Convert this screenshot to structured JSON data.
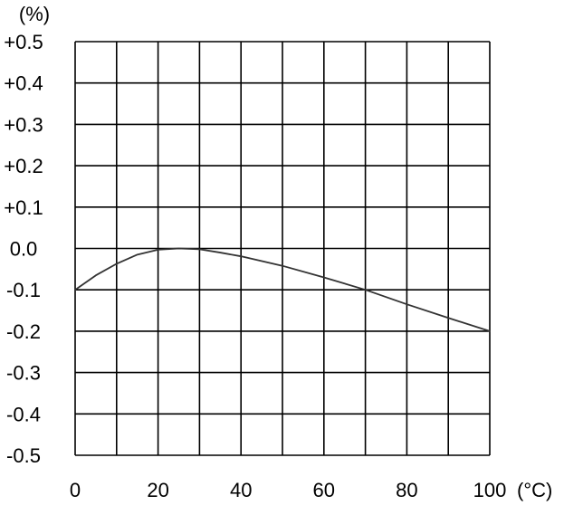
{
  "chart_data": {
    "type": "line",
    "title": "",
    "xlabel": "",
    "ylabel": "",
    "y_unit_label": "(%)",
    "x_unit_label": "(°C)",
    "xlim": [
      0,
      100
    ],
    "ylim": [
      -0.5,
      0.5
    ],
    "grid": true,
    "x_gridlines": [
      0,
      10,
      20,
      30,
      40,
      50,
      60,
      70,
      80,
      90,
      100
    ],
    "y_gridlines": [
      -0.5,
      -0.4,
      -0.3,
      -0.2,
      -0.1,
      0.0,
      0.1,
      0.2,
      0.3,
      0.4,
      0.5
    ],
    "x_ticks": [
      {
        "value": 0,
        "label": "0"
      },
      {
        "value": 20,
        "label": "20"
      },
      {
        "value": 40,
        "label": "40"
      },
      {
        "value": 60,
        "label": "60"
      },
      {
        "value": 80,
        "label": "80"
      },
      {
        "value": 100,
        "label": "100"
      }
    ],
    "y_ticks": [
      {
        "value": 0.5,
        "label": "+0.5"
      },
      {
        "value": 0.4,
        "label": "+0.4"
      },
      {
        "value": 0.3,
        "label": "+0.3"
      },
      {
        "value": 0.2,
        "label": "+0.2"
      },
      {
        "value": 0.1,
        "label": "+0.1"
      },
      {
        "value": 0.0,
        "label": "0.0"
      },
      {
        "value": -0.1,
        "label": "-0.1"
      },
      {
        "value": -0.2,
        "label": "-0.2"
      },
      {
        "value": -0.3,
        "label": "-0.3"
      },
      {
        "value": -0.4,
        "label": "-0.4"
      },
      {
        "value": -0.5,
        "label": "-0.5"
      }
    ],
    "series": [
      {
        "x": [
          0,
          5,
          10,
          15,
          20,
          25,
          30,
          35,
          40,
          50,
          60,
          70,
          80,
          90,
          100
        ],
        "y": [
          -0.1,
          -0.065,
          -0.037,
          -0.015,
          -0.003,
          0.0,
          -0.002,
          -0.01,
          -0.019,
          -0.042,
          -0.07,
          -0.1,
          -0.135,
          -0.168,
          -0.2
        ],
        "color": "#333333"
      }
    ]
  }
}
